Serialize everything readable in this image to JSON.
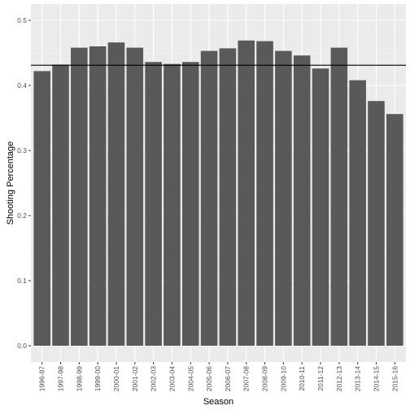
{
  "chart_data": {
    "type": "bar",
    "title": "",
    "xlabel": "Season",
    "ylabel": "Shooting Percentage",
    "categories": [
      "1996-97",
      "1997-98",
      "1998-99",
      "1999-00",
      "2000-01",
      "2001-02",
      "2002-03",
      "2003-04",
      "2004-05",
      "2005-06",
      "2006-07",
      "2007-08",
      "2008-09",
      "2009-10",
      "2010-11",
      "2011-12",
      "2012-13",
      "2013-14",
      "2014-15",
      "2015-16"
    ],
    "values": [
      0.422,
      0.432,
      0.458,
      0.46,
      0.466,
      0.458,
      0.436,
      0.433,
      0.436,
      0.453,
      0.457,
      0.469,
      0.468,
      0.453,
      0.446,
      0.426,
      0.458,
      0.408,
      0.376,
      0.356
    ],
    "ylim": [
      0,
      0.5
    ],
    "yticks": [
      "0.0",
      "0.1",
      "0.2",
      "0.3",
      "0.4",
      "0.5"
    ],
    "reference_line": 0.431,
    "grid": true,
    "x_tick_rotation": "vertical",
    "colors": {
      "panel": "#ebebeb",
      "grid_major": "#ffffff",
      "grid_minor": "#f5f5f5",
      "bar": "#595959",
      "reference_line": "#000000"
    }
  }
}
